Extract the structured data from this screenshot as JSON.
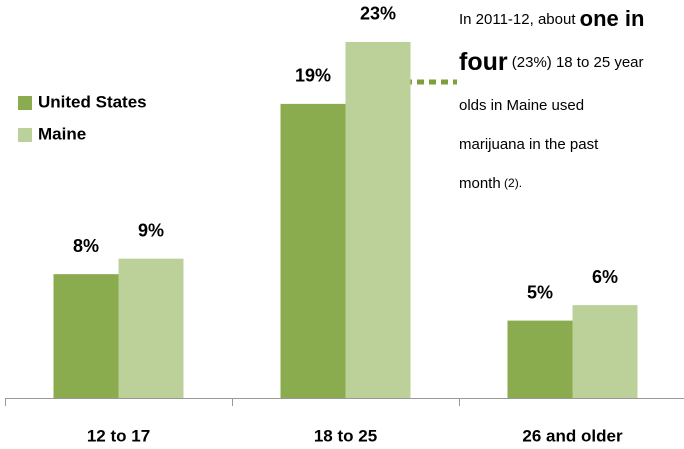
{
  "chart_data": {
    "type": "bar",
    "categories": [
      "12 to 17",
      "18 to 25",
      "26 and older"
    ],
    "series": [
      {
        "name": "United States",
        "color": "#8aab4e",
        "values": [
          8,
          19,
          5
        ]
      },
      {
        "name": "Maine",
        "color": "#bcd09a",
        "values": [
          9,
          23,
          6
        ]
      }
    ],
    "value_labels": [
      [
        "8%",
        "19%",
        "5%"
      ],
      [
        "9%",
        "23%",
        "6%"
      ]
    ],
    "ylim": [
      0,
      25
    ],
    "legend": "left",
    "annotation": {
      "line1": "In 2011-12, about ",
      "line1_bold": "one in",
      "line2_bold": "four",
      "line2": " (23%) 18 to 25 year",
      "line3": "olds in Maine used",
      "line4": "marijuana in the past",
      "line5": "month",
      "line5_note": " (2)."
    }
  }
}
